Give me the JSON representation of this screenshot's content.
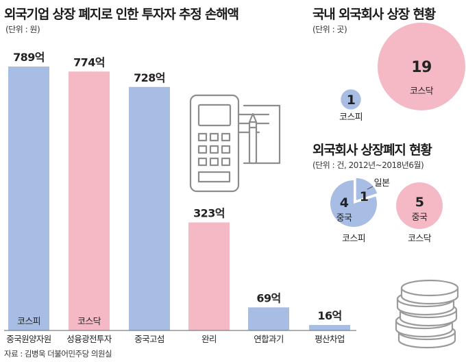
{
  "colors": {
    "blue": "#a7bde3",
    "pink": "#f5b9c6",
    "line": "#7f7f7f",
    "text": "#222222"
  },
  "left_panel": {
    "title": "외국기업 상장 폐지로 인한 투자자 추정 손해액",
    "unit": "(단위 : 원)",
    "source": "자료 : 김병욱 더불어민주당 의원실"
  },
  "right_top": {
    "title": "국내 외국회사 상장 현황",
    "unit": "(단위 : 곳)"
  },
  "right_bottom": {
    "title": "외국회사 상장폐지 현황",
    "unit": "(단위 : 건, 2012년~2018년6월)"
  },
  "icons": [
    "payment-terminal-icon",
    "coin-stack-icon"
  ],
  "chart_data": [
    {
      "type": "bar",
      "title": "외국기업 상장 폐지로 인한 투자자 추정 손해액",
      "unit": "원",
      "categories": [
        "중국원양자원",
        "성융광전투자",
        "중국고섬",
        "완리",
        "연합과기",
        "평산차업"
      ],
      "values": [
        789,
        774,
        728,
        323,
        69,
        16
      ],
      "value_labels": [
        "789억",
        "774억",
        "728억",
        "323억",
        "69억",
        "16억"
      ],
      "bar_colors": [
        "blue",
        "pink",
        "blue",
        "pink",
        "blue",
        "blue"
      ],
      "bar_markets": [
        "코스피",
        "코스닥",
        "",
        "",
        "",
        ""
      ],
      "ylim": [
        0,
        800
      ],
      "grid": false
    },
    {
      "type": "bubble",
      "title": "국내 외국회사 상장 현황",
      "unit": "곳",
      "categories": [
        "코스피",
        "코스닥"
      ],
      "values": [
        1,
        19
      ],
      "colors": [
        "blue",
        "pink"
      ]
    },
    {
      "type": "pie",
      "title": "외국회사 상장폐지 현황",
      "unit": "건",
      "groups": [
        {
          "market": "코스피",
          "slices": [
            {
              "label": "중국",
              "value": 4,
              "color": "blue"
            },
            {
              "label": "일본",
              "value": 1,
              "color": "blue"
            }
          ]
        },
        {
          "market": "코스닥",
          "slices": [
            {
              "label": "중국",
              "value": 5,
              "color": "pink"
            }
          ]
        }
      ]
    }
  ]
}
